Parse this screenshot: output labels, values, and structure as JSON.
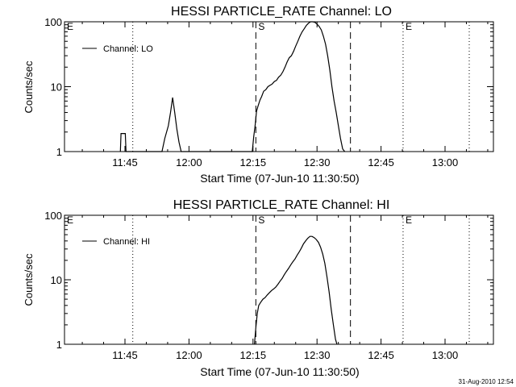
{
  "footer": {
    "timestamp": "31-Aug-2010 12:54"
  },
  "chart_data": [
    {
      "type": "line",
      "title": "HESSI PARTICLE_RATE Channel: LO",
      "xlabel": "Start Time (07-Jun-10 11:30:50)",
      "ylabel": "Counts/sec",
      "yscale": "log",
      "ylim": [
        1,
        100
      ],
      "xlim": [
        "11:30:50",
        "13:11:20"
      ],
      "xticks": [
        "11:45",
        "12:00",
        "12:15",
        "12:30",
        "12:45",
        "13:00"
      ],
      "yticks": [
        "1",
        "10",
        "100"
      ],
      "grid": false,
      "legend": {
        "placement": "top-left",
        "entry": "Channel: LO"
      },
      "event_markers": [
        {
          "label": "E",
          "time": "11:30:50",
          "style": "none"
        },
        {
          "label": "",
          "time": "11:46:50",
          "style": "dotted"
        },
        {
          "label": "S",
          "time": "12:15:40",
          "style": "dashed"
        },
        {
          "label": "",
          "time": "12:37:50",
          "style": "dashed"
        },
        {
          "label": "E",
          "time": "12:50:10",
          "style": "dotted"
        },
        {
          "label": "",
          "time": "13:05:40",
          "style": "dotted"
        }
      ],
      "series": [
        {
          "x": [
            "11:43:55",
            "11:44:05",
            "11:44:30",
            "11:45:05",
            "11:45:15",
            "11:53:40",
            "11:54:20",
            "11:55:10",
            "11:55:40",
            "11:56:10",
            "11:56:40",
            "11:57:10",
            "11:57:40",
            "11:58:10",
            "12:14:50",
            "12:15:10",
            "12:15:30",
            "12:15:50",
            "12:16:10",
            "12:16:40",
            "12:17:00",
            "12:17:30",
            "12:18:00",
            "12:18:30",
            "12:19:00",
            "12:19:30",
            "12:20:00",
            "12:20:30",
            "12:21:00",
            "12:21:30",
            "12:22:00",
            "12:22:30",
            "12:23:00",
            "12:23:30",
            "12:24:00",
            "12:24:30",
            "12:25:00",
            "12:25:30",
            "12:26:00",
            "12:26:30",
            "12:27:00",
            "12:27:30",
            "12:28:00",
            "12:28:30",
            "12:29:00",
            "12:29:30",
            "12:30:00",
            "12:30:30",
            "12:31:00",
            "12:31:30",
            "12:32:00",
            "12:32:30",
            "12:33:00",
            "12:33:30",
            "12:34:00",
            "12:34:30",
            "12:35:00",
            "12:35:30",
            "12:36:00",
            "12:36:30"
          ],
          "y": [
            1,
            1.9,
            1.9,
            1.9,
            1,
            1,
            1.6,
            2.5,
            4,
            6.8,
            4,
            2.2,
            1.4,
            1,
            1,
            1.7,
            2.5,
            4.2,
            5,
            6.3,
            7,
            8.5,
            9,
            10,
            10.5,
            11,
            12,
            12.5,
            14,
            15,
            17,
            20,
            24,
            28,
            30,
            35,
            42,
            50,
            60,
            70,
            78,
            88,
            95,
            100,
            100,
            98,
            92,
            85,
            75,
            60,
            45,
            30,
            18,
            10,
            6,
            4,
            2.5,
            1.6,
            1.1,
            1
          ]
        }
      ]
    },
    {
      "type": "line",
      "title": "HESSI PARTICLE_RATE Channel: HI",
      "xlabel": "Start Time (07-Jun-10 11:30:50)",
      "ylabel": "Counts/sec",
      "yscale": "log",
      "ylim": [
        1,
        100
      ],
      "xlim": [
        "11:30:50",
        "13:11:20"
      ],
      "xticks": [
        "11:45",
        "12:00",
        "12:15",
        "12:30",
        "12:45",
        "13:00"
      ],
      "yticks": [
        "1",
        "10",
        "100"
      ],
      "grid": false,
      "legend": {
        "placement": "top-left",
        "entry": "Channel: HI"
      },
      "event_markers": [
        {
          "label": "E",
          "time": "11:30:50",
          "style": "none"
        },
        {
          "label": "",
          "time": "11:46:50",
          "style": "dotted"
        },
        {
          "label": "S",
          "time": "12:15:40",
          "style": "dashed"
        },
        {
          "label": "",
          "time": "12:37:50",
          "style": "dashed"
        },
        {
          "label": "E",
          "time": "12:50:10",
          "style": "dotted"
        },
        {
          "label": "",
          "time": "13:05:40",
          "style": "dotted"
        }
      ],
      "series": [
        {
          "x": [
            "12:15:20",
            "12:15:40",
            "12:16:00",
            "12:16:20",
            "12:16:50",
            "12:17:20",
            "12:17:50",
            "12:18:20",
            "12:18:50",
            "12:19:20",
            "12:19:50",
            "12:20:20",
            "12:20:50",
            "12:21:20",
            "12:21:50",
            "12:22:20",
            "12:22:50",
            "12:23:20",
            "12:23:50",
            "12:24:20",
            "12:24:50",
            "12:25:20",
            "12:25:50",
            "12:26:20",
            "12:26:50",
            "12:27:20",
            "12:27:50",
            "12:28:20",
            "12:28:50",
            "12:29:20",
            "12:29:50",
            "12:30:20",
            "12:30:50",
            "12:31:20",
            "12:31:50",
            "12:32:20",
            "12:32:50",
            "12:33:20",
            "12:33:50",
            "12:34:20",
            "12:34:40"
          ],
          "y": [
            1,
            1.8,
            3,
            4,
            4.5,
            5,
            5.3,
            5.8,
            6.3,
            6.8,
            7.2,
            7.7,
            8.5,
            9.5,
            10.5,
            12,
            13.5,
            15,
            17,
            19,
            21,
            24,
            27,
            31,
            36,
            40,
            44,
            47,
            47,
            45,
            42,
            38,
            32,
            25,
            18,
            11,
            6.5,
            3.5,
            2,
            1.2,
            1
          ]
        }
      ]
    }
  ]
}
